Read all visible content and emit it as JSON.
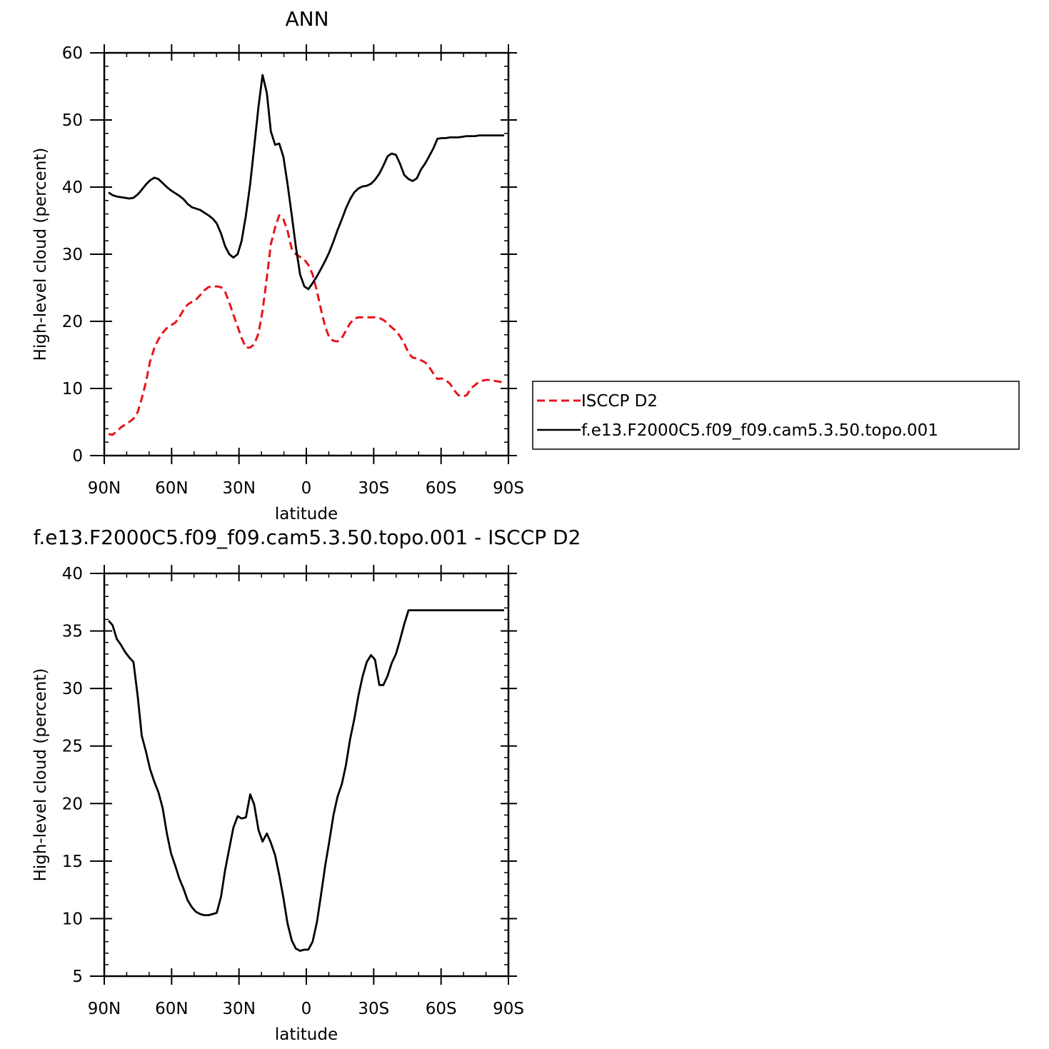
{
  "chart_data": [
    {
      "type": "line",
      "title": "ANN",
      "xlabel": "latitude",
      "ylabel": "High-level cloud (percent)",
      "xlim": [
        -90,
        90
      ],
      "ylim": [
        0,
        60
      ],
      "x_ticks": [
        -90,
        -60,
        -30,
        0,
        30,
        60,
        90
      ],
      "x_tick_labels": [
        "90N",
        "60N",
        "30N",
        "0",
        "30S",
        "60S",
        "90S"
      ],
      "y_ticks": [
        0,
        10,
        20,
        30,
        40,
        50,
        60
      ],
      "y_tick_labels": [
        "0",
        "10",
        "20",
        "30",
        "40",
        "50",
        "60"
      ],
      "legend": {
        "position": "right",
        "entries": [
          "ISCCP D2",
          "f.e13.F2000C5.f09_f09.cam5.3.50.topo.001"
        ]
      },
      "series": [
        {
          "name": "ISCCP D2",
          "color": "#e8141a",
          "dashed": true,
          "x": [
            -88.1,
            -86.3,
            -84.4,
            -82.6,
            -80.8,
            -78.9,
            -77,
            -75.1,
            -73.3,
            -71.4,
            -69.6,
            -67.7,
            -65.9,
            -64,
            -62.1,
            -60.3,
            -58.4,
            -56.6,
            -54.7,
            -52.9,
            -51,
            -49.2,
            -47.3,
            -45.5,
            -43.6,
            -41.7,
            -39.9,
            -38,
            -36.2,
            -34.3,
            -32.5,
            -30.6,
            -28.8,
            -26.9,
            -25,
            -23.2,
            -21.3,
            -19.5,
            -17.6,
            -15.8,
            -13.9,
            -12.1,
            -10.2,
            -8.4,
            -6.5,
            -4.7,
            -2.8,
            -0.9,
            0.9,
            2.8,
            4.7,
            6.5,
            8.4,
            10.2,
            12.1,
            13.9,
            15.8,
            17.6,
            19.5,
            21.3,
            23.2,
            25,
            26.9,
            28.8,
            30.6,
            32.5,
            34.3,
            36.2,
            38,
            39.9,
            41.7,
            43.6,
            45.5,
            47.3,
            49.2,
            51,
            52.9,
            54.7,
            56.6,
            58.4,
            60.3,
            62.1,
            64,
            65.9,
            67.7,
            69.6,
            71.4,
            73.3,
            75.1,
            77,
            78.9,
            80.8,
            82.6,
            84.4,
            86.3,
            88.1
          ],
          "y": [
            3.2,
            3.1,
            3.6,
            4.2,
            4.6,
            5,
            5.5,
            6.5,
            8.5,
            11,
            14,
            16,
            17.3,
            18.3,
            19,
            19.4,
            19.8,
            20.6,
            21.7,
            22.5,
            22.9,
            23.2,
            23.9,
            24.6,
            25.1,
            25.2,
            25.2,
            25.1,
            24.4,
            22.8,
            21,
            19.2,
            17.5,
            16.1,
            16.1,
            16.6,
            18.2,
            21.6,
            26.5,
            31.5,
            34,
            35.8,
            35.2,
            33.5,
            30.8,
            30,
            29.6,
            29.2,
            28.4,
            27,
            24.5,
            21.8,
            19.2,
            17.6,
            17.1,
            17,
            17.5,
            18.6,
            19.7,
            20.4,
            20.6,
            20.6,
            20.6,
            20.6,
            20.6,
            20.5,
            20.2,
            19.7,
            19.1,
            18.6,
            17.8,
            16.7,
            15.3,
            14.6,
            14.5,
            14.2,
            13.9,
            13.2,
            12.2,
            11.4,
            11.5,
            11.2,
            10.7,
            9.7,
            9,
            8.8,
            9,
            10,
            10.5,
            11,
            11.2,
            11.3,
            11.2,
            11.1,
            11,
            10.8
          ]
        },
        {
          "name": "f.e13.F2000C5.f09_f09.cam5.3.50.topo.001",
          "color": "#000000",
          "dashed": false,
          "x": [
            -88.1,
            -86.3,
            -84.4,
            -82.6,
            -80.8,
            -78.9,
            -77,
            -75.1,
            -73.3,
            -71.4,
            -69.6,
            -67.7,
            -65.9,
            -64,
            -62.1,
            -60.3,
            -58.4,
            -56.6,
            -54.7,
            -52.9,
            -51,
            -49.2,
            -47.3,
            -45.5,
            -43.6,
            -41.7,
            -39.9,
            -38,
            -36.2,
            -34.3,
            -32.5,
            -30.6,
            -28.8,
            -26.9,
            -25,
            -23.2,
            -21.3,
            -19.5,
            -17.6,
            -15.8,
            -13.9,
            -12.1,
            -10.2,
            -8.4,
            -6.5,
            -4.7,
            -2.8,
            -0.9,
            0.9,
            2.8,
            4.7,
            6.5,
            8.4,
            10.2,
            12.1,
            13.9,
            15.8,
            17.6,
            19.5,
            21.3,
            23.2,
            25,
            26.9,
            28.8,
            30.6,
            32.5,
            34.3,
            36.2,
            38,
            39.9,
            41.7,
            43.6,
            45.5,
            47.3,
            49.2,
            51,
            52.9,
            54.7,
            56.6,
            58.4,
            60.3,
            62.1,
            64,
            65.9,
            67.7,
            69.6,
            71.4,
            73.3,
            75.1,
            77,
            78.9,
            80.8,
            82.6,
            84.4,
            86.3,
            88.1
          ],
          "y": [
            39.2,
            38.8,
            38.6,
            38.5,
            38.4,
            38.3,
            38.4,
            38.9,
            39.6,
            40.4,
            41,
            41.4,
            41.2,
            40.6,
            40,
            39.5,
            39.1,
            38.7,
            38.2,
            37.5,
            37,
            36.8,
            36.6,
            36.2,
            35.8,
            35.3,
            34.6,
            33.1,
            31.2,
            30,
            29.5,
            30,
            32,
            35.8,
            40.5,
            46,
            52,
            56.7,
            54,
            48.3,
            46.3,
            46.5,
            44.5,
            40.5,
            35.8,
            31.2,
            27,
            25.2,
            24.8,
            25.7,
            26.7,
            27.8,
            29,
            30.3,
            31.9,
            33.6,
            35.2,
            36.8,
            38.2,
            39.2,
            39.8,
            40.1,
            40.2,
            40.5,
            41.1,
            42,
            43.2,
            44.6,
            45,
            44.8,
            43.5,
            41.8,
            41.2,
            40.9,
            41.3,
            42.6,
            43.5,
            44.6,
            45.8,
            47.2,
            47.3,
            47.3,
            47.4,
            47.4,
            47.4,
            47.5,
            47.6,
            47.6,
            47.6,
            47.7,
            47.7,
            47.7,
            47.7,
            47.7,
            47.7,
            47.7
          ]
        }
      ]
    },
    {
      "type": "line",
      "title": "f.e13.F2000C5.f09_f09.cam5.3.50.topo.001 - ISCCP D2",
      "xlabel": "latitude",
      "ylabel": "High-level cloud (percent)",
      "xlim": [
        -90,
        90
      ],
      "ylim": [
        5,
        40
      ],
      "x_ticks": [
        -90,
        -60,
        -30,
        0,
        30,
        60,
        90
      ],
      "x_tick_labels": [
        "90N",
        "60N",
        "30N",
        "0",
        "30S",
        "60S",
        "90S"
      ],
      "y_ticks": [
        5,
        10,
        15,
        20,
        25,
        30,
        35,
        40
      ],
      "y_tick_labels": [
        "5",
        "10",
        "15",
        "20",
        "25",
        "30",
        "35",
        "40"
      ],
      "series": [
        {
          "color": "#000000",
          "dashed": false,
          "x": [
            -88.1,
            -86.3,
            -84.4,
            -82.6,
            -80.8,
            -78.9,
            -77,
            -75.1,
            -73.3,
            -71.4,
            -69.6,
            -67.7,
            -65.9,
            -64,
            -62.1,
            -60.3,
            -58.4,
            -56.6,
            -54.7,
            -52.9,
            -51,
            -49.2,
            -47.3,
            -45.5,
            -43.6,
            -41.7,
            -39.9,
            -38,
            -36.2,
            -34.3,
            -32.5,
            -30.6,
            -28.8,
            -26.9,
            -25,
            -23.2,
            -21.3,
            -19.5,
            -17.6,
            -15.8,
            -13.9,
            -12.1,
            -10.2,
            -8.4,
            -6.5,
            -4.7,
            -2.8,
            -0.9,
            0.9,
            2.8,
            4.7,
            6.5,
            8.4,
            10.2,
            12.1,
            13.9,
            15.8,
            17.6,
            19.5,
            21.3,
            23.2,
            25,
            26.9,
            28.8,
            30.6,
            32.5,
            34.3,
            36.2,
            38,
            39.9,
            41.7,
            43.6,
            45.5,
            47.3,
            49.2,
            51,
            52.9,
            54.7,
            56.6,
            58.4,
            60.3,
            62.1,
            64,
            65.9,
            67.7,
            69.6,
            71.4,
            73.3,
            75.1,
            77,
            78.9,
            80.8,
            82.6,
            84.4,
            86.3,
            88.1
          ],
          "y": [
            35.9,
            35.5,
            34.3,
            33.8,
            33.2,
            32.7,
            32.3,
            29.3,
            25.9,
            24.5,
            23,
            21.9,
            21,
            19.6,
            17.4,
            15.7,
            14.6,
            13.5,
            12.6,
            11.6,
            11,
            10.6,
            10.4,
            10.3,
            10.3,
            10.4,
            10.5,
            11.9,
            14.2,
            16.1,
            17.9,
            18.9,
            18.7,
            18.8,
            20.8,
            19.9,
            17.7,
            16.7,
            17.4,
            16.6,
            15.5,
            13.8,
            11.8,
            9.6,
            8.1,
            7.4,
            7.2,
            7.3,
            7.3,
            8,
            9.7,
            12,
            14.6,
            16.7,
            19,
            20.6,
            21.7,
            23.3,
            25.6,
            27.3,
            29.4,
            31,
            32.3,
            32.9,
            32.5,
            30.3,
            30.3,
            31.1,
            32.2,
            33,
            34.2,
            35.6,
            36.8,
            36.8,
            36.8,
            36.8,
            36.8,
            36.8,
            36.8,
            36.8,
            36.8,
            36.8,
            36.8,
            36.8,
            36.8,
            36.8,
            36.8,
            36.8,
            36.8,
            36.8,
            36.8,
            36.8,
            36.8,
            36.8,
            36.8,
            36.8
          ]
        }
      ]
    }
  ]
}
